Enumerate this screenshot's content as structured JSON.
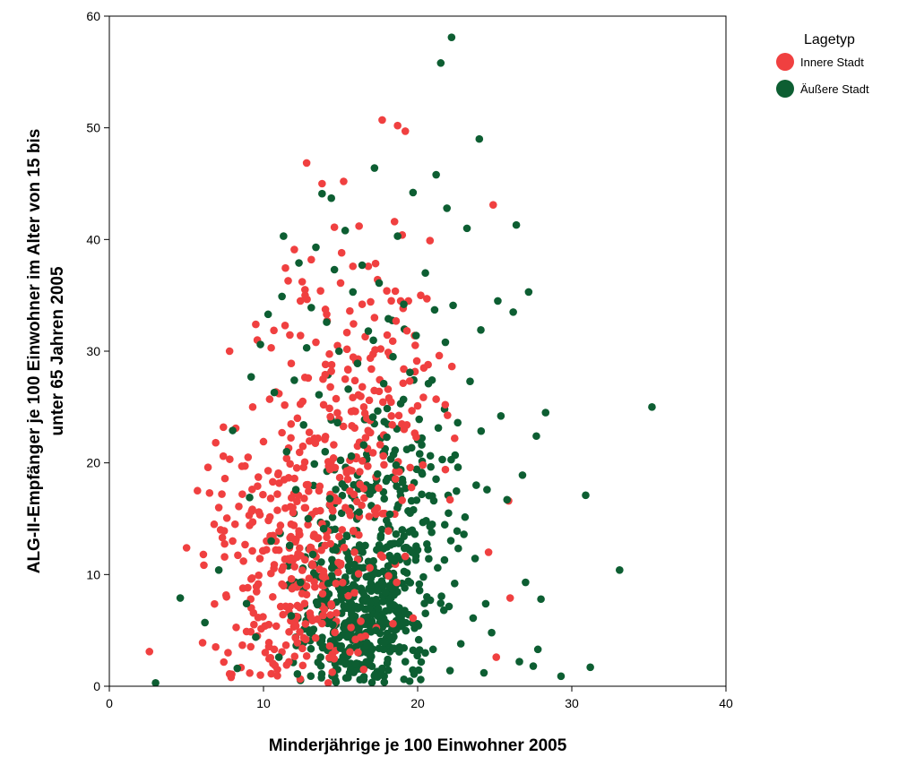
{
  "chart_data": {
    "type": "scatter",
    "xlabel": "Minderjährige je 100 Einwohner 2005",
    "ylabel_lines": [
      "ALG-II-Empfänger je 100 Einwohner im Alter von 15 bis",
      "unter 65 Jahren 2005"
    ],
    "xlim": [
      0,
      40
    ],
    "ylim": [
      0,
      60
    ],
    "xticks": [
      0,
      10,
      20,
      30,
      40
    ],
    "yticks": [
      0,
      10,
      20,
      30,
      40,
      50,
      60
    ],
    "grid": false,
    "legend": {
      "title": "Lagetyp",
      "placement": "top-right-outside"
    },
    "series": [
      {
        "name": "Innere Stadt",
        "color": "#f04040",
        "points": [
          [
            2.6,
            3.1
          ],
          [
            6.1,
            11.8
          ],
          [
            6.4,
            19.6
          ],
          [
            6.5,
            17.3
          ],
          [
            6.8,
            14.5
          ],
          [
            6.9,
            21.8
          ],
          [
            7.1,
            16.0
          ],
          [
            7.3,
            17.2
          ],
          [
            7.4,
            23.2
          ],
          [
            7.5,
            18.6
          ],
          [
            7.6,
            8.0
          ],
          [
            7.7,
            3.0
          ],
          [
            7.8,
            1.1
          ],
          [
            7.8,
            30.0
          ],
          [
            7.9,
            0.8
          ],
          [
            8.0,
            13.0
          ],
          [
            8.2,
            23.1
          ],
          [
            8.4,
            16.1
          ],
          [
            8.6,
            19.7
          ],
          [
            8.7,
            11.2
          ],
          [
            8.9,
            4.9
          ],
          [
            9.0,
            20.5
          ],
          [
            9.1,
            14.4
          ],
          [
            9.2,
            9.6
          ],
          [
            9.3,
            25.0
          ],
          [
            9.5,
            32.4
          ],
          [
            9.6,
            4.5
          ],
          [
            9.6,
            31.0
          ],
          [
            9.7,
            15.6
          ],
          [
            9.8,
            1.0
          ],
          [
            10.0,
            21.9
          ],
          [
            10.1,
            5.4
          ],
          [
            10.2,
            13.0
          ],
          [
            10.3,
            19.3
          ],
          [
            10.4,
            25.7
          ],
          [
            10.5,
            30.3
          ],
          [
            10.6,
            8.0
          ],
          [
            10.6,
            18.3
          ],
          [
            10.7,
            3.3
          ],
          [
            10.8,
            12.2
          ],
          [
            10.9,
            17.2
          ],
          [
            11.0,
            26.2
          ],
          [
            11.1,
            14.4
          ],
          [
            11.2,
            22.7
          ],
          [
            11.3,
            9.0
          ],
          [
            11.4,
            32.3
          ],
          [
            11.5,
            1.9
          ],
          [
            11.5,
            20.4
          ],
          [
            11.6,
            36.3
          ],
          [
            11.7,
            11.3
          ],
          [
            11.8,
            28.9
          ],
          [
            11.9,
            16.0
          ],
          [
            12.0,
            39.1
          ],
          [
            12.1,
            5.4
          ],
          [
            12.2,
            24.0
          ],
          [
            12.3,
            13.9
          ],
          [
            12.4,
            31.4
          ],
          [
            12.5,
            8.3
          ],
          [
            12.6,
            19.6
          ],
          [
            12.7,
            35.0
          ],
          [
            12.8,
            2.7
          ],
          [
            12.9,
            27.6
          ],
          [
            13.0,
            15.1
          ],
          [
            13.1,
            38.2
          ],
          [
            13.2,
            10.8
          ],
          [
            13.3,
            22.2
          ],
          [
            13.4,
            30.8
          ],
          [
            13.5,
            6.0
          ],
          [
            13.6,
            17.5
          ],
          [
            13.7,
            35.4
          ],
          [
            13.8,
            45.0
          ],
          [
            13.9,
            25.2
          ],
          [
            14.0,
            12.6
          ],
          [
            14.1,
            33.3
          ],
          [
            14.2,
            20.1
          ],
          [
            14.3,
            3.6
          ],
          [
            14.4,
            28.2
          ],
          [
            14.5,
            15.7
          ],
          [
            14.6,
            41.1
          ],
          [
            14.7,
            9.2
          ],
          [
            14.8,
            30.5
          ],
          [
            14.9,
            23.9
          ],
          [
            15.0,
            36.1
          ],
          [
            15.1,
            14.0
          ],
          [
            15.2,
            45.2
          ],
          [
            15.3,
            27.5
          ],
          [
            15.4,
            19.1
          ],
          [
            15.5,
            8.1
          ],
          [
            15.6,
            33.6
          ],
          [
            15.7,
            24.6
          ],
          [
            15.8,
            37.6
          ],
          [
            15.9,
            12.0
          ],
          [
            16.0,
            29.1
          ],
          [
            16.1,
            21.5
          ],
          [
            16.2,
            41.2
          ],
          [
            16.3,
            4.4
          ],
          [
            16.4,
            34.2
          ],
          [
            16.5,
            17.7
          ],
          [
            16.6,
            31.3
          ],
          [
            16.7,
            24.0
          ],
          [
            16.8,
            37.6
          ],
          [
            16.9,
            10.6
          ],
          [
            17.0,
            28.4
          ],
          [
            17.1,
            20.9
          ],
          [
            17.2,
            33.0
          ],
          [
            17.3,
            15.4
          ],
          [
            17.4,
            36.4
          ],
          [
            17.5,
            26.4
          ],
          [
            17.6,
            30.2
          ],
          [
            17.7,
            50.7
          ],
          [
            17.8,
            22.5
          ],
          [
            18.0,
            35.4
          ],
          [
            18.1,
            13.9
          ],
          [
            18.2,
            29.6
          ],
          [
            18.3,
            24.2
          ],
          [
            18.5,
            41.6
          ],
          [
            18.6,
            32.7
          ],
          [
            18.7,
            50.2
          ],
          [
            18.8,
            19.2
          ],
          [
            18.9,
            34.5
          ],
          [
            19.0,
            40.4
          ],
          [
            19.1,
            28.4
          ],
          [
            19.2,
            49.7
          ],
          [
            19.3,
            23.4
          ],
          [
            19.4,
            34.5
          ],
          [
            19.6,
            17.8
          ],
          [
            19.8,
            31.4
          ],
          [
            20.0,
            25.1
          ],
          [
            20.2,
            35.0
          ],
          [
            20.4,
            28.5
          ],
          [
            20.6,
            34.7
          ],
          [
            20.8,
            39.9
          ],
          [
            21.2,
            25.7
          ],
          [
            21.4,
            29.6
          ],
          [
            21.8,
            19.4
          ],
          [
            22.1,
            16.7
          ],
          [
            22.4,
            22.2
          ],
          [
            24.6,
            12.0
          ],
          [
            24.9,
            43.1
          ],
          [
            25.1,
            2.6
          ],
          [
            25.9,
            16.6
          ],
          [
            26.0,
            7.9
          ],
          [
            14.2,
            0.3
          ],
          [
            16.5,
            1.5
          ],
          [
            18.4,
            5.6
          ],
          [
            19.7,
            6.1
          ]
        ]
      },
      {
        "name": "Äußere Stadt",
        "color": "#0d5e32",
        "points": [
          [
            3.0,
            0.3
          ],
          [
            4.6,
            7.9
          ],
          [
            6.2,
            5.7
          ],
          [
            7.1,
            10.4
          ],
          [
            8.0,
            22.9
          ],
          [
            8.3,
            1.6
          ],
          [
            8.9,
            7.4
          ],
          [
            9.1,
            16.9
          ],
          [
            9.2,
            27.7
          ],
          [
            9.5,
            4.4
          ],
          [
            9.8,
            30.6
          ],
          [
            10.3,
            33.3
          ],
          [
            10.5,
            13.0
          ],
          [
            10.7,
            26.3
          ],
          [
            11.0,
            2.6
          ],
          [
            11.2,
            34.9
          ],
          [
            11.3,
            40.3
          ],
          [
            11.5,
            21.0
          ],
          [
            11.7,
            12.6
          ],
          [
            11.8,
            6.3
          ],
          [
            12.0,
            27.4
          ],
          [
            12.1,
            17.6
          ],
          [
            12.2,
            1.1
          ],
          [
            12.3,
            37.9
          ],
          [
            12.4,
            9.3
          ],
          [
            12.6,
            23.4
          ],
          [
            12.8,
            30.3
          ],
          [
            12.9,
            15.0
          ],
          [
            13.0,
            4.8
          ],
          [
            13.1,
            33.9
          ],
          [
            13.2,
            11.8
          ],
          [
            13.3,
            19.9
          ],
          [
            13.4,
            39.3
          ],
          [
            13.5,
            7.3
          ],
          [
            13.6,
            26.1
          ],
          [
            13.7,
            2.6
          ],
          [
            13.8,
            44.1
          ],
          [
            13.9,
            14.1
          ],
          [
            14.0,
            21.0
          ],
          [
            14.1,
            32.6
          ],
          [
            14.2,
            9.2
          ],
          [
            14.3,
            16.8
          ],
          [
            14.4,
            43.7
          ],
          [
            14.5,
            5.5
          ],
          [
            14.6,
            37.3
          ],
          [
            14.7,
            12.2
          ],
          [
            14.8,
            23.6
          ],
          [
            14.9,
            30.0
          ],
          [
            15.0,
            3.4
          ],
          [
            15.1,
            18.1
          ],
          [
            15.2,
            8.6
          ],
          [
            15.3,
            40.8
          ],
          [
            15.4,
            13.5
          ],
          [
            15.5,
            26.6
          ],
          [
            15.6,
            5.9
          ],
          [
            15.7,
            20.6
          ],
          [
            15.8,
            35.3
          ],
          [
            15.9,
            10.9
          ],
          [
            16.0,
            2.0
          ],
          [
            16.1,
            28.9
          ],
          [
            16.2,
            15.6
          ],
          [
            16.3,
            7.1
          ],
          [
            16.4,
            37.7
          ],
          [
            16.5,
            21.6
          ],
          [
            16.6,
            12.6
          ],
          [
            16.7,
            3.9
          ],
          [
            16.8,
            31.8
          ],
          [
            16.9,
            17.2
          ],
          [
            17.0,
            9.1
          ],
          [
            17.1,
            24.1
          ],
          [
            17.2,
            46.4
          ],
          [
            17.3,
            5.0
          ],
          [
            17.4,
            19.0
          ],
          [
            17.5,
            36.1
          ],
          [
            17.6,
            13.3
          ],
          [
            17.7,
            1.6
          ],
          [
            17.8,
            27.1
          ],
          [
            17.9,
            8.4
          ],
          [
            18.0,
            22.3
          ],
          [
            18.1,
            32.9
          ],
          [
            18.2,
            15.4
          ],
          [
            18.3,
            4.4
          ],
          [
            18.4,
            29.5
          ],
          [
            18.5,
            11.2
          ],
          [
            18.6,
            19.8
          ],
          [
            18.7,
            40.3
          ],
          [
            18.8,
            6.3
          ],
          [
            18.9,
            25.3
          ],
          [
            19.0,
            14.0
          ],
          [
            19.1,
            34.2
          ],
          [
            19.2,
            2.2
          ],
          [
            19.3,
            21.2
          ],
          [
            19.4,
            9.4
          ],
          [
            19.5,
            28.1
          ],
          [
            19.6,
            16.6
          ],
          [
            19.7,
            44.2
          ],
          [
            19.8,
            5.2
          ],
          [
            19.9,
            31.4
          ],
          [
            20.0,
            12.2
          ],
          [
            20.1,
            23.9
          ],
          [
            20.2,
            0.6
          ],
          [
            20.3,
            19.0
          ],
          [
            20.5,
            37.0
          ],
          [
            20.6,
            8.0
          ],
          [
            20.7,
            27.1
          ],
          [
            20.8,
            14.3
          ],
          [
            21.0,
            3.3
          ],
          [
            21.1,
            33.7
          ],
          [
            21.2,
            45.8
          ],
          [
            21.3,
            10.6
          ],
          [
            21.5,
            55.8
          ],
          [
            21.6,
            20.3
          ],
          [
            21.7,
            6.8
          ],
          [
            21.8,
            30.8
          ],
          [
            21.9,
            42.8
          ],
          [
            22.0,
            15.5
          ],
          [
            22.1,
            1.4
          ],
          [
            22.2,
            58.1
          ],
          [
            22.3,
            34.1
          ],
          [
            22.4,
            9.2
          ],
          [
            22.6,
            23.6
          ],
          [
            22.8,
            3.8
          ],
          [
            23.0,
            13.6
          ],
          [
            23.2,
            41.0
          ],
          [
            23.4,
            27.3
          ],
          [
            23.6,
            6.1
          ],
          [
            23.8,
            18.0
          ],
          [
            24.0,
            49.0
          ],
          [
            24.1,
            31.9
          ],
          [
            24.3,
            1.2
          ],
          [
            24.5,
            17.6
          ],
          [
            24.8,
            4.8
          ],
          [
            25.2,
            34.5
          ],
          [
            25.4,
            24.2
          ],
          [
            25.8,
            16.7
          ],
          [
            26.2,
            33.5
          ],
          [
            26.4,
            41.3
          ],
          [
            26.6,
            2.2
          ],
          [
            26.8,
            18.9
          ],
          [
            27.0,
            9.3
          ],
          [
            27.2,
            35.3
          ],
          [
            27.5,
            1.8
          ],
          [
            27.7,
            22.4
          ],
          [
            27.8,
            3.3
          ],
          [
            28.0,
            7.8
          ],
          [
            28.3,
            24.5
          ],
          [
            29.3,
            0.9
          ],
          [
            30.9,
            17.1
          ],
          [
            31.2,
            1.7
          ],
          [
            33.1,
            10.4
          ],
          [
            35.2,
            25.0
          ]
        ]
      }
    ],
    "dense_clusters": [
      {
        "series": 1,
        "cx": 16.2,
        "cy": 6.5,
        "sx": 2.0,
        "sy": 4.0,
        "n": 420
      },
      {
        "series": 1,
        "cx": 18.5,
        "cy": 16.0,
        "sx": 2.2,
        "sy": 6.0,
        "n": 150
      },
      {
        "series": 0,
        "cx": 12.0,
        "cy": 11.0,
        "sx": 2.4,
        "sy": 6.0,
        "n": 260
      },
      {
        "series": 0,
        "cx": 16.5,
        "cy": 24.0,
        "sx": 2.4,
        "sy": 6.5,
        "n": 130
      }
    ]
  }
}
